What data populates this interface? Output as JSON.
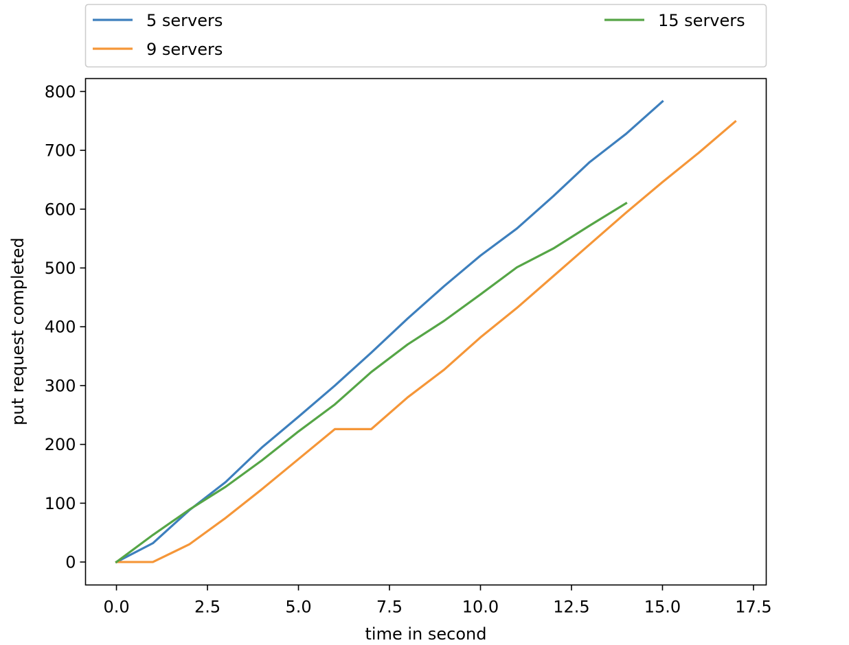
{
  "chart_data": {
    "type": "line",
    "title": "",
    "xlabel": "time in second",
    "ylabel": "put request completed",
    "xlim": [
      -0.85,
      17.85
    ],
    "ylim": [
      -39,
      822
    ],
    "xticks": [
      0.0,
      2.5,
      5.0,
      7.5,
      10.0,
      12.5,
      15.0,
      17.5
    ],
    "xtick_labels": [
      "0.0",
      "2.5",
      "5.0",
      "7.5",
      "10.0",
      "12.5",
      "15.0",
      "17.5"
    ],
    "yticks": [
      0,
      100,
      200,
      300,
      400,
      500,
      600,
      700,
      800
    ],
    "ytick_labels": [
      "0",
      "100",
      "200",
      "300",
      "400",
      "500",
      "600",
      "700",
      "800"
    ],
    "grid": false,
    "legend": {
      "placement": "above plot, two columns"
    },
    "series": [
      {
        "name": "5 servers",
        "color": "#3d7fbd",
        "x": [
          0,
          1,
          2,
          3,
          4,
          5,
          6,
          7,
          8,
          9,
          10,
          11,
          12,
          13,
          14,
          15
        ],
        "y": [
          0,
          32,
          88,
          136,
          195,
          247,
          300,
          356,
          414,
          469,
          521,
          567,
          622,
          680,
          728,
          783
        ]
      },
      {
        "name": "9 servers",
        "color": "#f59638",
        "x": [
          0,
          1,
          2,
          3,
          4,
          5,
          6,
          7,
          8,
          9,
          10,
          11,
          12,
          13,
          14,
          15,
          16,
          17
        ],
        "y": [
          0,
          0,
          30,
          75,
          124,
          175,
          226,
          226,
          280,
          327,
          382,
          432,
          486,
          540,
          594,
          646,
          696,
          749
        ]
      },
      {
        "name": "15 servers",
        "color": "#55a546",
        "x": [
          0,
          1,
          2,
          3,
          4,
          5,
          6,
          7,
          8,
          9,
          10,
          11,
          12,
          13,
          14
        ],
        "y": [
          0,
          46,
          89,
          128,
          173,
          222,
          268,
          323,
          370,
          410,
          455,
          501,
          533,
          572,
          610
        ]
      }
    ]
  }
}
